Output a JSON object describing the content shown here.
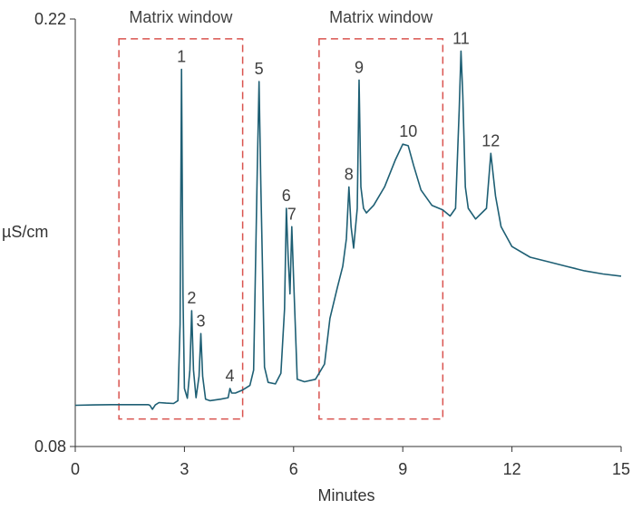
{
  "chart_data": {
    "type": "line",
    "title": "",
    "xlabel": "Minutes",
    "ylabel": "µS/cm",
    "xlim": [
      0,
      15
    ],
    "ylim": [
      0.08,
      0.22
    ],
    "x_ticks": [
      {
        "value": 0,
        "label": "0"
      },
      {
        "value": 3,
        "label": "3"
      },
      {
        "value": 6,
        "label": "6"
      },
      {
        "value": 9,
        "label": "9"
      },
      {
        "value": 12,
        "label": "12"
      },
      {
        "value": 15,
        "label": "15"
      }
    ],
    "y_ticks": [
      {
        "value": 0.08,
        "label": "0.08"
      },
      {
        "value": 0.22,
        "label": "0.22"
      }
    ],
    "grid": false,
    "legend": "none",
    "line_color": "#1e5f74",
    "window_color": "#d9534f",
    "matrix_windows": [
      {
        "label": "Matrix window",
        "x_start": 1.2,
        "x_end": 4.6,
        "y_low": 0.089,
        "y_high": 0.2135
      },
      {
        "label": "Matrix window",
        "x_start": 6.7,
        "x_end": 10.1,
        "y_low": 0.089,
        "y_high": 0.2135
      }
    ],
    "series": [
      {
        "x": [
          0,
          0.5,
          1,
          1.5,
          2,
          2.05,
          2.12,
          2.2,
          2.3,
          2.5,
          2.7,
          2.82,
          2.88,
          2.92,
          2.96,
          3.0,
          3.08,
          3.15,
          3.2,
          3.25,
          3.32,
          3.4,
          3.45,
          3.5,
          3.58,
          3.7,
          4.0,
          4.2,
          4.25,
          4.3,
          4.4,
          4.6,
          4.8,
          4.9,
          5.0,
          5.05,
          5.1,
          5.2,
          5.3,
          5.5,
          5.65,
          5.75,
          5.8,
          5.85,
          5.9,
          5.95,
          6.0,
          6.1,
          6.3,
          6.6,
          6.85,
          7.0,
          7.2,
          7.35,
          7.45,
          7.52,
          7.58,
          7.65,
          7.75,
          7.8,
          7.85,
          7.92,
          8.0,
          8.2,
          8.5,
          8.8,
          9.0,
          9.15,
          9.3,
          9.5,
          9.8,
          10.1,
          10.3,
          10.45,
          10.55,
          10.6,
          10.65,
          10.72,
          10.8,
          11.0,
          11.3,
          11.42,
          11.55,
          11.7,
          12.0,
          12.5,
          13.0,
          13.5,
          14.0,
          14.5,
          15.0
        ],
        "y": [
          0.0935,
          0.0936,
          0.0937,
          0.0937,
          0.0937,
          0.0935,
          0.0922,
          0.0936,
          0.0944,
          0.0942,
          0.0941,
          0.095,
          0.12,
          0.2035,
          0.13,
          0.099,
          0.0958,
          0.105,
          0.1245,
          0.105,
          0.096,
          0.103,
          0.117,
          0.103,
          0.0955,
          0.095,
          0.0955,
          0.096,
          0.099,
          0.0975,
          0.0975,
          0.0985,
          0.1,
          0.105,
          0.17,
          0.1995,
          0.165,
          0.106,
          0.101,
          0.1005,
          0.104,
          0.125,
          0.158,
          0.142,
          0.13,
          0.152,
          0.135,
          0.102,
          0.1012,
          0.102,
          0.107,
          0.122,
          0.132,
          0.139,
          0.148,
          0.165,
          0.152,
          0.145,
          0.158,
          0.2,
          0.165,
          0.158,
          0.1565,
          0.159,
          0.165,
          0.174,
          0.179,
          0.1785,
          0.172,
          0.164,
          0.159,
          0.1575,
          0.1555,
          0.158,
          0.19,
          0.2095,
          0.195,
          0.165,
          0.158,
          0.1545,
          0.158,
          0.176,
          0.162,
          0.152,
          0.1455,
          0.142,
          0.1405,
          0.139,
          0.1375,
          0.1365,
          0.1358
        ]
      }
    ],
    "peak_labels": [
      {
        "label": "1",
        "x": 2.92,
        "y": 0.2035
      },
      {
        "label": "2",
        "x": 3.2,
        "y": 0.1245
      },
      {
        "label": "3",
        "x": 3.45,
        "y": 0.117
      },
      {
        "label": "4",
        "x": 4.25,
        "y": 0.099
      },
      {
        "label": "5",
        "x": 5.05,
        "y": 0.1995
      },
      {
        "label": "6",
        "x": 5.8,
        "y": 0.158
      },
      {
        "label": "7",
        "x": 5.95,
        "y": 0.152
      },
      {
        "label": "8",
        "x": 7.52,
        "y": 0.165
      },
      {
        "label": "9",
        "x": 7.8,
        "y": 0.2
      },
      {
        "label": "10",
        "x": 9.15,
        "y": 0.179
      },
      {
        "label": "11",
        "x": 10.6,
        "y": 0.2095
      },
      {
        "label": "12",
        "x": 11.42,
        "y": 0.176
      }
    ]
  }
}
